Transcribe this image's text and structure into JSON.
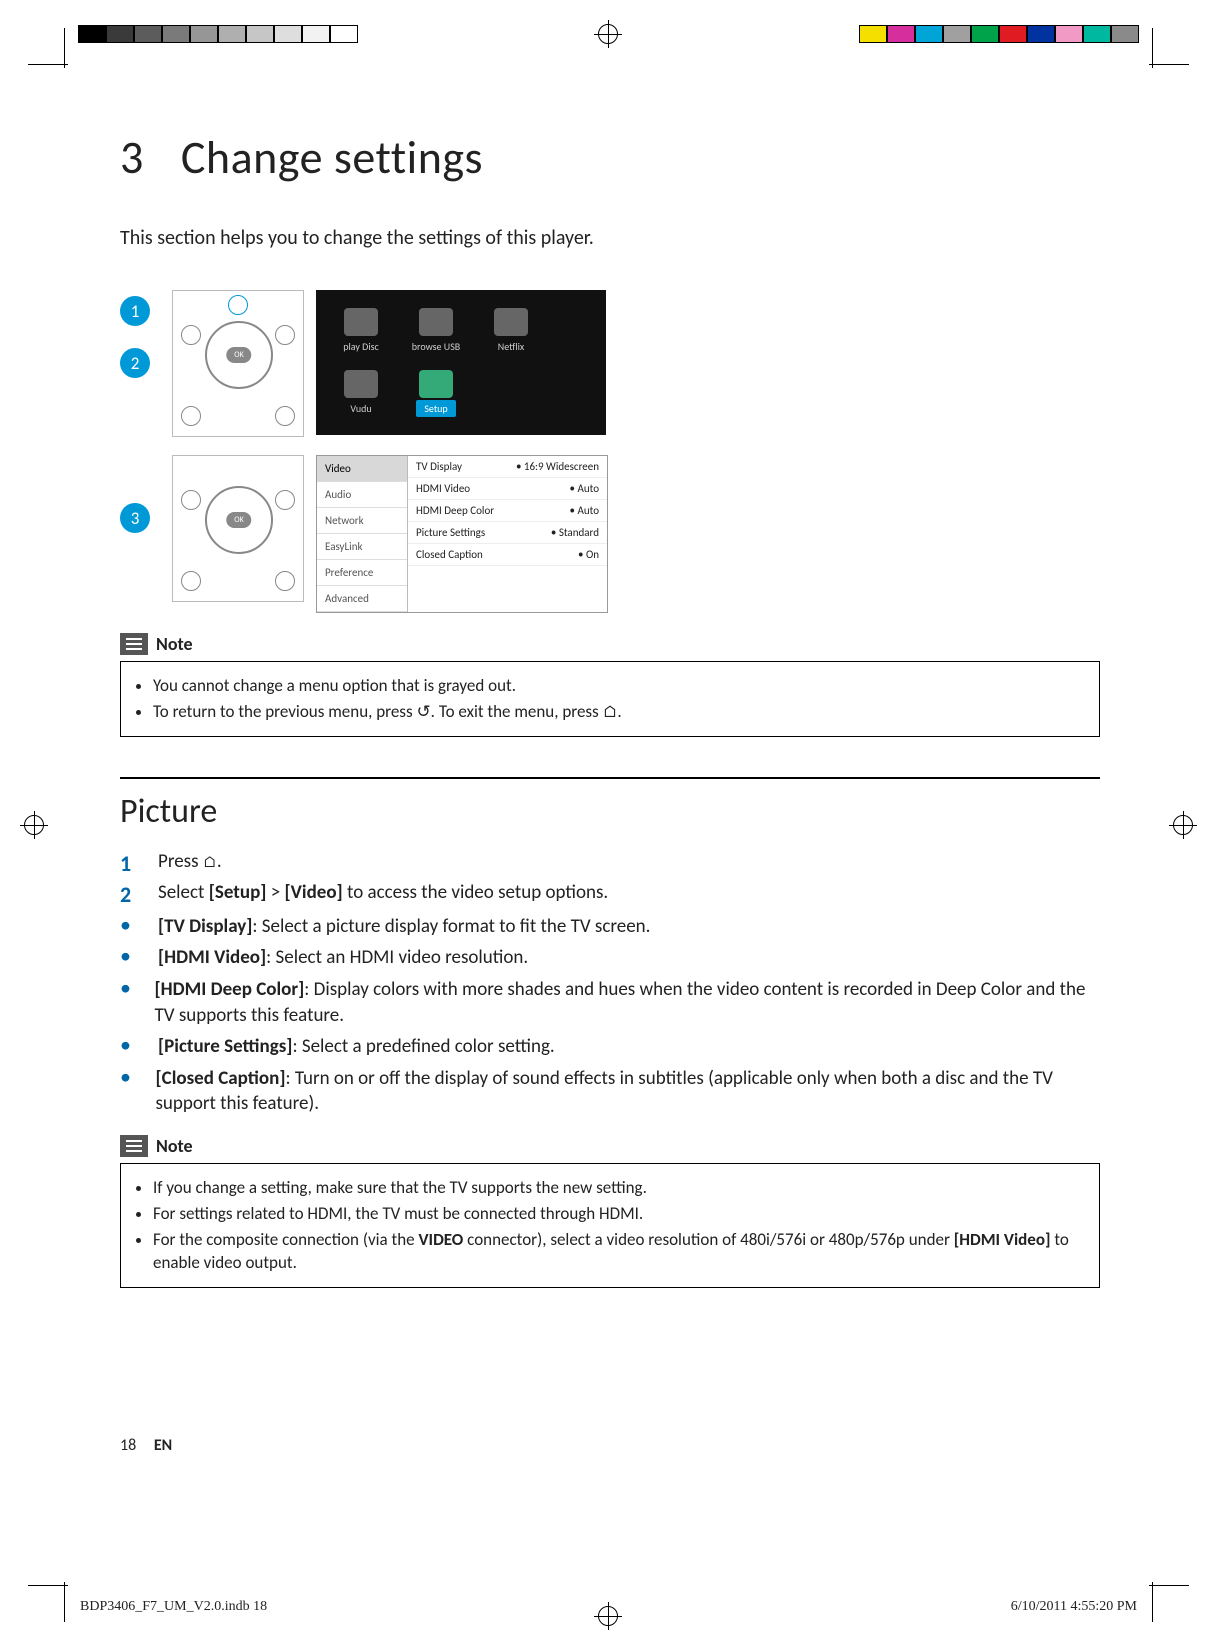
{
  "chapter": {
    "number": "3",
    "title": "Change settings"
  },
  "intro": "This section helps you to change the settings of this player.",
  "bubbles": [
    "1",
    "2",
    "3"
  ],
  "home_menu": {
    "tiles": [
      "play Disc",
      "browse USB",
      "Netflix",
      "Vudu"
    ],
    "setup_label": "Setup"
  },
  "settings_menu": {
    "left": [
      "Video",
      "Audio",
      "Network",
      "EasyLink",
      "Preference",
      "Advanced"
    ],
    "right": [
      {
        "k": "TV Display",
        "v": "16:9 Widescreen"
      },
      {
        "k": "HDMI Video",
        "v": "Auto"
      },
      {
        "k": "HDMI Deep Color",
        "v": "Auto"
      },
      {
        "k": "Picture Settings",
        "v": "Standard"
      },
      {
        "k": "Closed Caption",
        "v": "On"
      }
    ]
  },
  "note1": {
    "title": "Note",
    "items": [
      "You cannot change a menu option that is grayed out.",
      "To return to the previous menu, press ↺. To exit the menu, press ⌂."
    ]
  },
  "section_title": "Picture",
  "steps": [
    {
      "n": "1",
      "text_before": "Press ",
      "glyph": "⌂",
      "text_after": "."
    },
    {
      "n": "2",
      "text_before": "Select ",
      "bold1": "[Setup]",
      "mid": " > ",
      "bold2": "[Video]",
      "text_after": " to access the video setup options."
    }
  ],
  "options": [
    {
      "label": "[TV Display]",
      "desc": ": Select a picture display format to fit the TV screen."
    },
    {
      "label": "[HDMI Video]",
      "desc": ": Select an HDMI video resolution."
    },
    {
      "label": "[HDMI Deep Color]",
      "desc": ": Display colors with more shades and hues when the video content is recorded in Deep Color and the TV supports this feature."
    },
    {
      "label": "[Picture Settings]",
      "desc": ": Select a predefined color setting."
    },
    {
      "label": "[Closed Caption]",
      "desc": ": Turn on or off the display of sound effects in subtitles (applicable only when both a disc and the TV support this feature)."
    }
  ],
  "note2": {
    "title": "Note",
    "items": [
      "If you change a setting, make sure that the TV supports the new setting.",
      "For settings related to HDMI, the TV must be connected through HDMI.",
      "For the composite connection (via the <b>VIDEO</b> connector), select a video resolution of 480i/576i or 480p/576p under <b>[HDMI Video]</b> to enable video output."
    ]
  },
  "footer": {
    "page": "18",
    "lang": "EN"
  },
  "print_footer": {
    "file": "BDP3406_F7_UM_V2.0.indb   18",
    "stamp": "6/10/2011   4:55:20 PM"
  },
  "colorbar_left": [
    "#000000",
    "#3a3a3a",
    "#5c5c5c",
    "#7a7a7a",
    "#969696",
    "#afafaf",
    "#c6c6c6",
    "#dedede",
    "#f2f2f2",
    "#ffffff"
  ],
  "colorbar_right": [
    "#f5df00",
    "#d72e9e",
    "#00a5d8",
    "#a0a0a0",
    "#00a34a",
    "#e11b22",
    "#0033a0",
    "#f19ac6",
    "#00b8a0",
    "#8a8a8a"
  ]
}
